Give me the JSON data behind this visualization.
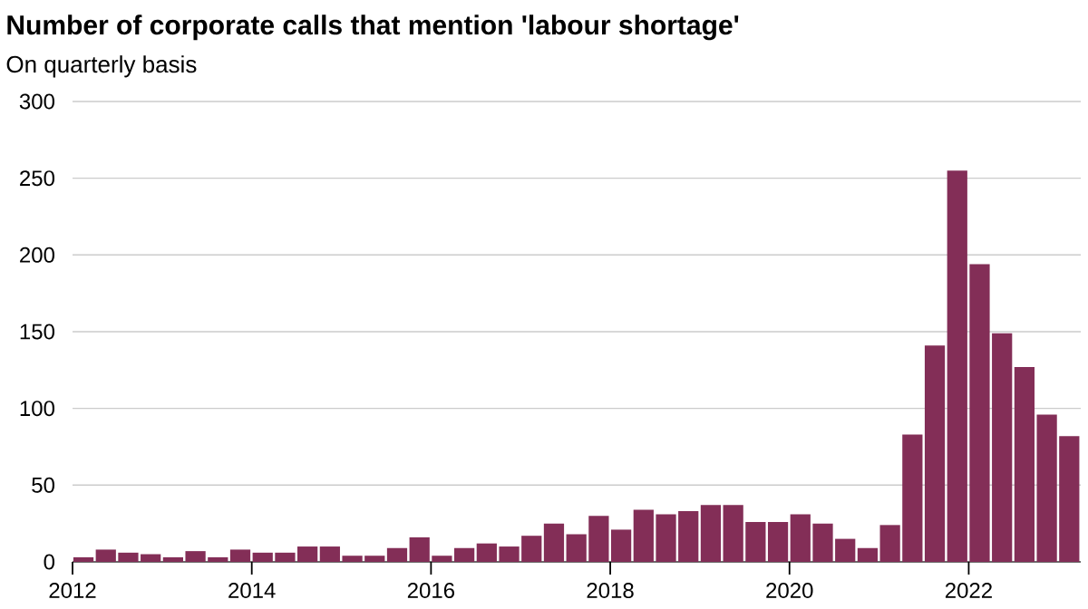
{
  "chart_data": {
    "type": "bar",
    "title": "Number of corporate calls that mention 'labour shortage'",
    "subtitle": "On quarterly basis",
    "x": [
      "2012-02-15",
      "2012-05-15",
      "2012-08-15",
      "2012-11-15",
      "2013-02-15",
      "2013-05-15",
      "2013-08-15",
      "2013-11-15",
      "2014-02-15",
      "2014-05-15",
      "2014-08-15",
      "2014-11-15",
      "2015-02-15",
      "2015-05-15",
      "2015-08-15",
      "2015-11-15",
      "2016-02-15",
      "2016-05-15",
      "2016-08-15",
      "2016-11-15",
      "2017-02-15",
      "2017-05-15",
      "2017-08-15",
      "2017-11-15",
      "2018-02-15",
      "2018-05-15",
      "2018-08-15",
      "2018-11-15",
      "2019-02-15",
      "2019-05-15",
      "2019-08-15",
      "2019-11-15",
      "2020-02-15",
      "2020-05-15",
      "2020-08-15",
      "2020-11-15",
      "2021-02-15",
      "2021-05-15",
      "2021-08-15",
      "2021-11-15",
      "2022-02-15",
      "2022-05-15",
      "2022-08-15",
      "2022-11-15",
      "2023-02-15"
    ],
    "values": [
      3,
      8,
      6,
      5,
      3,
      7,
      3,
      8,
      6,
      6,
      10,
      10,
      4,
      4,
      9,
      16,
      4,
      9,
      12,
      10,
      17,
      25,
      18,
      30,
      21,
      34,
      31,
      33,
      37,
      37,
      26,
      26,
      31,
      25,
      15,
      9,
      24,
      83,
      141,
      255,
      194,
      149,
      127,
      96,
      82
    ],
    "color": "#832e57",
    "xlim": [
      "2012-01",
      "2023-04"
    ],
    "ylim": [
      0,
      300
    ],
    "xticks": [
      "2012",
      "2014",
      "2016",
      "2018",
      "2020",
      "2022"
    ],
    "yticks": [
      0,
      50,
      100,
      150,
      200,
      250,
      300
    ],
    "grid": "y"
  }
}
